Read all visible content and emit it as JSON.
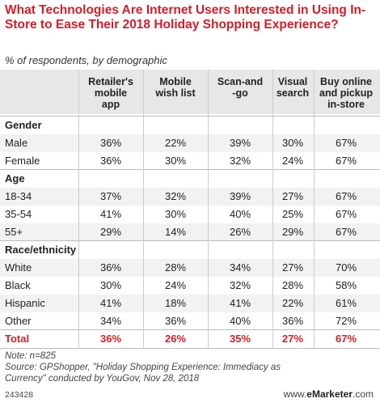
{
  "title": "What Technologies Are Internet Users Interested in Using In-Store to Ease Their 2018 Holiday Shopping Experience?",
  "subtitle": "% of respondents, by demographic",
  "columns": [
    {
      "line1": "Retailer's",
      "line2": "mobile",
      "line3": "app"
    },
    {
      "line1": "Mobile",
      "line2": "wish list",
      "line3": ""
    },
    {
      "line1": "Scan-and",
      "line2": "-go",
      "line3": ""
    },
    {
      "line1": "Visual",
      "line2": "search",
      "line3": ""
    },
    {
      "line1": "Buy online",
      "line2": "and pickup",
      "line3": "in-store"
    }
  ],
  "chart_data": {
    "type": "table",
    "title": "What Technologies Are Internet Users Interested in Using In-Store to Ease Their 2018 Holiday Shopping Experience?",
    "subtitle": "% of respondents, by demographic",
    "columns": [
      "Retailer's mobile app",
      "Mobile wish list",
      "Scan-and-go",
      "Visual search",
      "Buy online and pickup in-store"
    ],
    "groups": [
      {
        "name": "Gender",
        "rows": [
          {
            "label": "Male",
            "values": [
              "36%",
              "22%",
              "39%",
              "30%",
              "67%"
            ]
          },
          {
            "label": "Female",
            "values": [
              "36%",
              "30%",
              "32%",
              "24%",
              "67%"
            ]
          }
        ]
      },
      {
        "name": "Age",
        "rows": [
          {
            "label": "18-34",
            "values": [
              "37%",
              "32%",
              "39%",
              "27%",
              "67%"
            ]
          },
          {
            "label": "35-54",
            "values": [
              "41%",
              "30%",
              "40%",
              "25%",
              "67%"
            ]
          },
          {
            "label": "55+",
            "values": [
              "29%",
              "14%",
              "26%",
              "29%",
              "67%"
            ]
          }
        ]
      },
      {
        "name": "Race/ethnicity",
        "rows": [
          {
            "label": "White",
            "values": [
              "36%",
              "28%",
              "34%",
              "27%",
              "70%"
            ]
          },
          {
            "label": "Black",
            "values": [
              "30%",
              "24%",
              "32%",
              "28%",
              "58%"
            ]
          },
          {
            "label": "Hispanic",
            "values": [
              "41%",
              "18%",
              "41%",
              "22%",
              "61%"
            ]
          },
          {
            "label": "Other",
            "values": [
              "34%",
              "36%",
              "40%",
              "36%",
              "72%"
            ]
          }
        ]
      }
    ],
    "total": {
      "label": "Total",
      "values": [
        "36%",
        "26%",
        "35%",
        "27%",
        "67%"
      ]
    }
  },
  "footer": {
    "note1": "Note: n=825",
    "note2": "Source: GPShopper, \"Holiday Shopping Experience: Immediacy as",
    "note3": "Currency\" conducted by YouGov, Nov 28, 2018",
    "chart_id": "243428",
    "brand_prefix": "www.",
    "brand_name": "eMarketer",
    "brand_suffix": ".com"
  },
  "colors": {
    "accent": "#d41e28",
    "header_bg": "#e7e7e7",
    "row_shade": "#f2f2f2"
  }
}
